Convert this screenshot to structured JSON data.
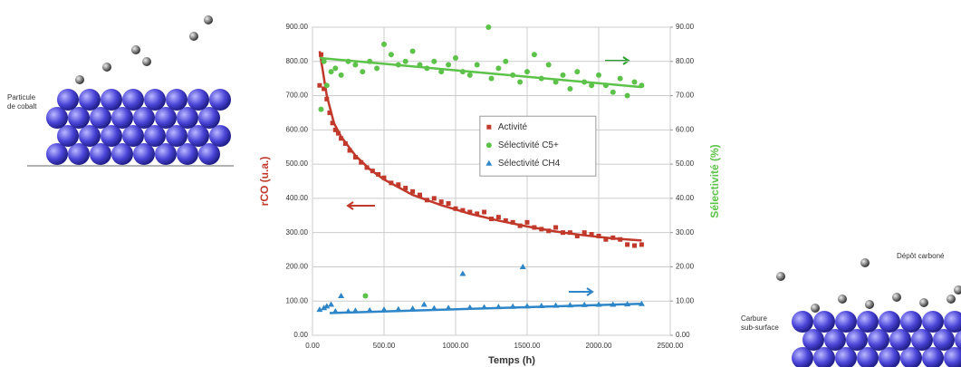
{
  "chart_data": {
    "type": "scatter",
    "x_label": "Temps (h)",
    "y_label": "rCO (u.a.)",
    "y2_label": "Sélectivité (%)",
    "xlim": [
      0,
      2500
    ],
    "ylim": [
      0,
      900
    ],
    "y2lim": [
      0,
      90
    ],
    "xticks": [
      {
        "value": 0,
        "label": "0.00"
      },
      {
        "value": 500,
        "label": "500.00"
      },
      {
        "value": 1000,
        "label": "1000.00"
      },
      {
        "value": 1500,
        "label": "1500.00"
      },
      {
        "value": 2000,
        "label": "2000.00"
      },
      {
        "value": 2500,
        "label": "2500.00"
      }
    ],
    "yticks": [
      {
        "value": 0,
        "label": "0.00"
      },
      {
        "value": 100,
        "label": "100.00"
      },
      {
        "value": 200,
        "label": "200.00"
      },
      {
        "value": 300,
        "label": "300.00"
      },
      {
        "value": 400,
        "label": "400.00"
      },
      {
        "value": 500,
        "label": "500.00"
      },
      {
        "value": 600,
        "label": "600.00"
      },
      {
        "value": 700,
        "label": "700.00"
      },
      {
        "value": 800,
        "label": "800.00"
      },
      {
        "value": 900,
        "label": "900.00"
      }
    ],
    "y2ticks": [
      {
        "value": 0,
        "label": "0.00"
      },
      {
        "value": 10,
        "label": "10.00"
      },
      {
        "value": 20,
        "label": "20.00"
      },
      {
        "value": 30,
        "label": "30.00"
      },
      {
        "value": 40,
        "label": "40.00"
      },
      {
        "value": 50,
        "label": "50.00"
      },
      {
        "value": 60,
        "label": "60.00"
      },
      {
        "value": 70,
        "label": "70.00"
      },
      {
        "value": 80,
        "label": "80.00"
      },
      {
        "value": 90,
        "label": "90.00"
      }
    ],
    "grid": true,
    "legend": "right",
    "series": [
      {
        "name": "Activité",
        "color": "#c0392b",
        "marker": "square",
        "axis": "y",
        "x": [
          50,
          60,
          80,
          100,
          120,
          140,
          160,
          180,
          200,
          230,
          260,
          300,
          340,
          380,
          420,
          460,
          500,
          550,
          600,
          650,
          700,
          750,
          800,
          850,
          900,
          950,
          1000,
          1050,
          1100,
          1150,
          1200,
          1250,
          1300,
          1350,
          1400,
          1450,
          1500,
          1550,
          1600,
          1650,
          1700,
          1750,
          1800,
          1850,
          1900,
          1950,
          2000,
          2050,
          2100,
          2150,
          2200,
          2250,
          2300
        ],
        "values": [
          730,
          820,
          720,
          690,
          650,
          620,
          600,
          590,
          575,
          560,
          540,
          520,
          505,
          490,
          480,
          470,
          460,
          445,
          440,
          430,
          420,
          410,
          395,
          400,
          390,
          385,
          370,
          365,
          360,
          355,
          360,
          340,
          345,
          335,
          330,
          320,
          330,
          315,
          310,
          305,
          315,
          300,
          300,
          290,
          300,
          295,
          290,
          280,
          285,
          280,
          265,
          262,
          265
        ],
        "trend": {
          "x": [
            50,
            100,
            150,
            200,
            300,
            400,
            500,
            700,
            900,
            1100,
            1300,
            1500,
            1700,
            1900,
            2100,
            2300
          ],
          "values": [
            830,
            700,
            620,
            580,
            525,
            485,
            455,
            410,
            380,
            355,
            335,
            318,
            303,
            292,
            283,
            277
          ]
        }
      },
      {
        "name": "Sélectivité C5+",
        "color": "#5dc24a",
        "marker": "circle",
        "axis": "y2",
        "x": [
          60,
          80,
          100,
          130,
          160,
          200,
          250,
          300,
          350,
          370,
          400,
          450,
          500,
          550,
          600,
          650,
          700,
          750,
          800,
          850,
          900,
          950,
          1000,
          1050,
          1100,
          1150,
          1230,
          1250,
          1300,
          1350,
          1400,
          1450,
          1500,
          1550,
          1600,
          1650,
          1700,
          1750,
          1800,
          1850,
          1900,
          1950,
          2000,
          2050,
          2100,
          2150,
          2200,
          2250,
          2300
        ],
        "values": [
          66,
          80,
          73,
          77,
          78,
          76,
          80,
          79,
          77,
          11.5,
          80,
          78,
          85,
          82,
          79,
          80,
          83,
          79,
          78,
          80,
          77,
          79,
          81,
          77,
          76,
          79,
          90,
          75,
          78,
          80,
          76,
          74,
          77,
          82,
          75,
          79,
          74,
          76,
          72,
          77,
          74,
          73,
          76,
          73,
          71,
          75,
          70,
          74,
          73
        ],
        "trend": {
          "x": [
            50,
            2300
          ],
          "values": [
            81,
            72.5
          ]
        }
      },
      {
        "name": "Sélectivité CH4",
        "color": "#2e86c8",
        "marker": "triangle",
        "axis": "y2",
        "x": [
          50,
          80,
          100,
          130,
          160,
          200,
          250,
          300,
          400,
          500,
          600,
          700,
          780,
          850,
          950,
          1050,
          1100,
          1200,
          1300,
          1400,
          1470,
          1500,
          1600,
          1700,
          1800,
          1900,
          2000,
          2100,
          2200,
          2300
        ],
        "values": [
          7.5,
          8,
          8.5,
          9,
          7,
          11.5,
          7,
          7.2,
          7.3,
          7.5,
          7.6,
          7.8,
          9,
          7.9,
          8,
          18,
          8.1,
          8.2,
          8.3,
          8.4,
          20,
          8.5,
          8.6,
          8.7,
          8.8,
          8.9,
          9,
          9,
          9.1,
          9.2
        ],
        "trend": {
          "x": [
            120,
            2300
          ],
          "values": [
            6.5,
            9.2
          ]
        }
      }
    ]
  },
  "illustrations": {
    "left_label": [
      "Particule",
      "de cobalt"
    ],
    "right_labels": [
      "Dépôt carboné",
      "Carbure",
      "sub-surface"
    ]
  }
}
